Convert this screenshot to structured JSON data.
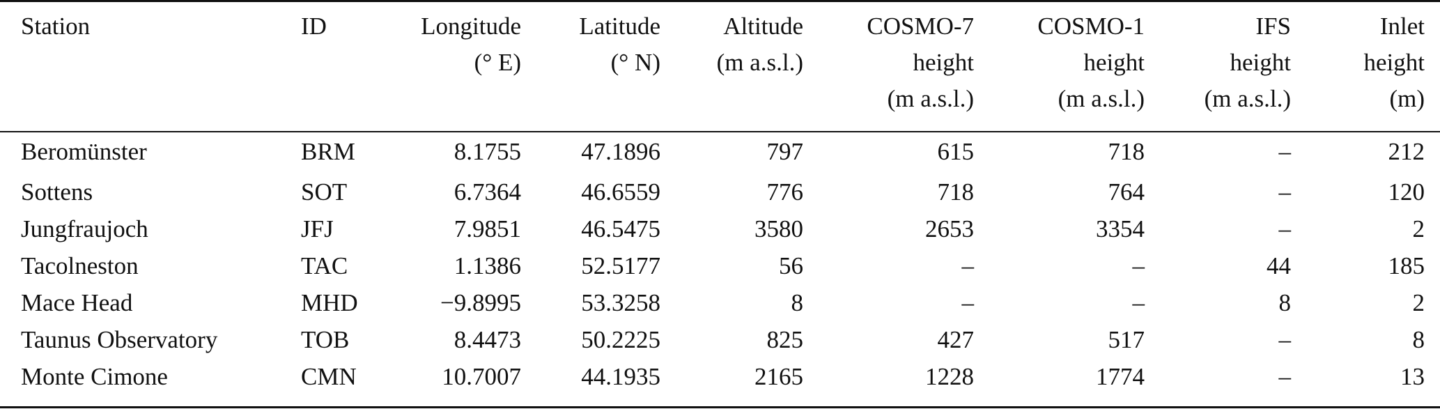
{
  "table": {
    "headers": [
      {
        "key": "station",
        "lines": [
          "Station"
        ]
      },
      {
        "key": "id",
        "lines": [
          "ID"
        ]
      },
      {
        "key": "longitude",
        "lines": [
          "Longitude",
          "(° E)"
        ]
      },
      {
        "key": "latitude",
        "lines": [
          "Latitude",
          "(° N)"
        ]
      },
      {
        "key": "altitude",
        "lines": [
          "Altitude",
          "(m a.s.l.)"
        ]
      },
      {
        "key": "cosmo7",
        "lines": [
          "COSMO-7",
          "height",
          "(m a.s.l.)"
        ]
      },
      {
        "key": "cosmo1",
        "lines": [
          "COSMO-1",
          "height",
          "(m a.s.l.)"
        ]
      },
      {
        "key": "ifs",
        "lines": [
          "IFS",
          "height",
          "(m a.s.l.)"
        ]
      },
      {
        "key": "inlet",
        "lines": [
          "Inlet",
          "height",
          "(m)"
        ]
      }
    ],
    "rows": [
      [
        "Beromünster",
        "BRM",
        "8.1755",
        "47.1896",
        "797",
        "615",
        "718",
        "–",
        "212"
      ],
      [
        "Sottens",
        "SOT",
        "6.7364",
        "46.6559",
        "776",
        "718",
        "764",
        "–",
        "120"
      ],
      [
        "Jungfraujoch",
        "JFJ",
        "7.9851",
        "46.5475",
        "3580",
        "2653",
        "3354",
        "–",
        "2"
      ],
      [
        "Tacolneston",
        "TAC",
        "1.1386",
        "52.5177",
        "56",
        "–",
        "–",
        "44",
        "185"
      ],
      [
        "Mace Head",
        "MHD",
        "−9.8995",
        "53.3258",
        "8",
        "–",
        "–",
        "8",
        "2"
      ],
      [
        "Taunus Observatory",
        "TOB",
        "8.4473",
        "50.2225",
        "825",
        "427",
        "517",
        "–",
        "8"
      ],
      [
        "Monte Cimone",
        "CMN",
        "10.7007",
        "44.1935",
        "2165",
        "1228",
        "1774",
        "–",
        "13"
      ]
    ]
  }
}
